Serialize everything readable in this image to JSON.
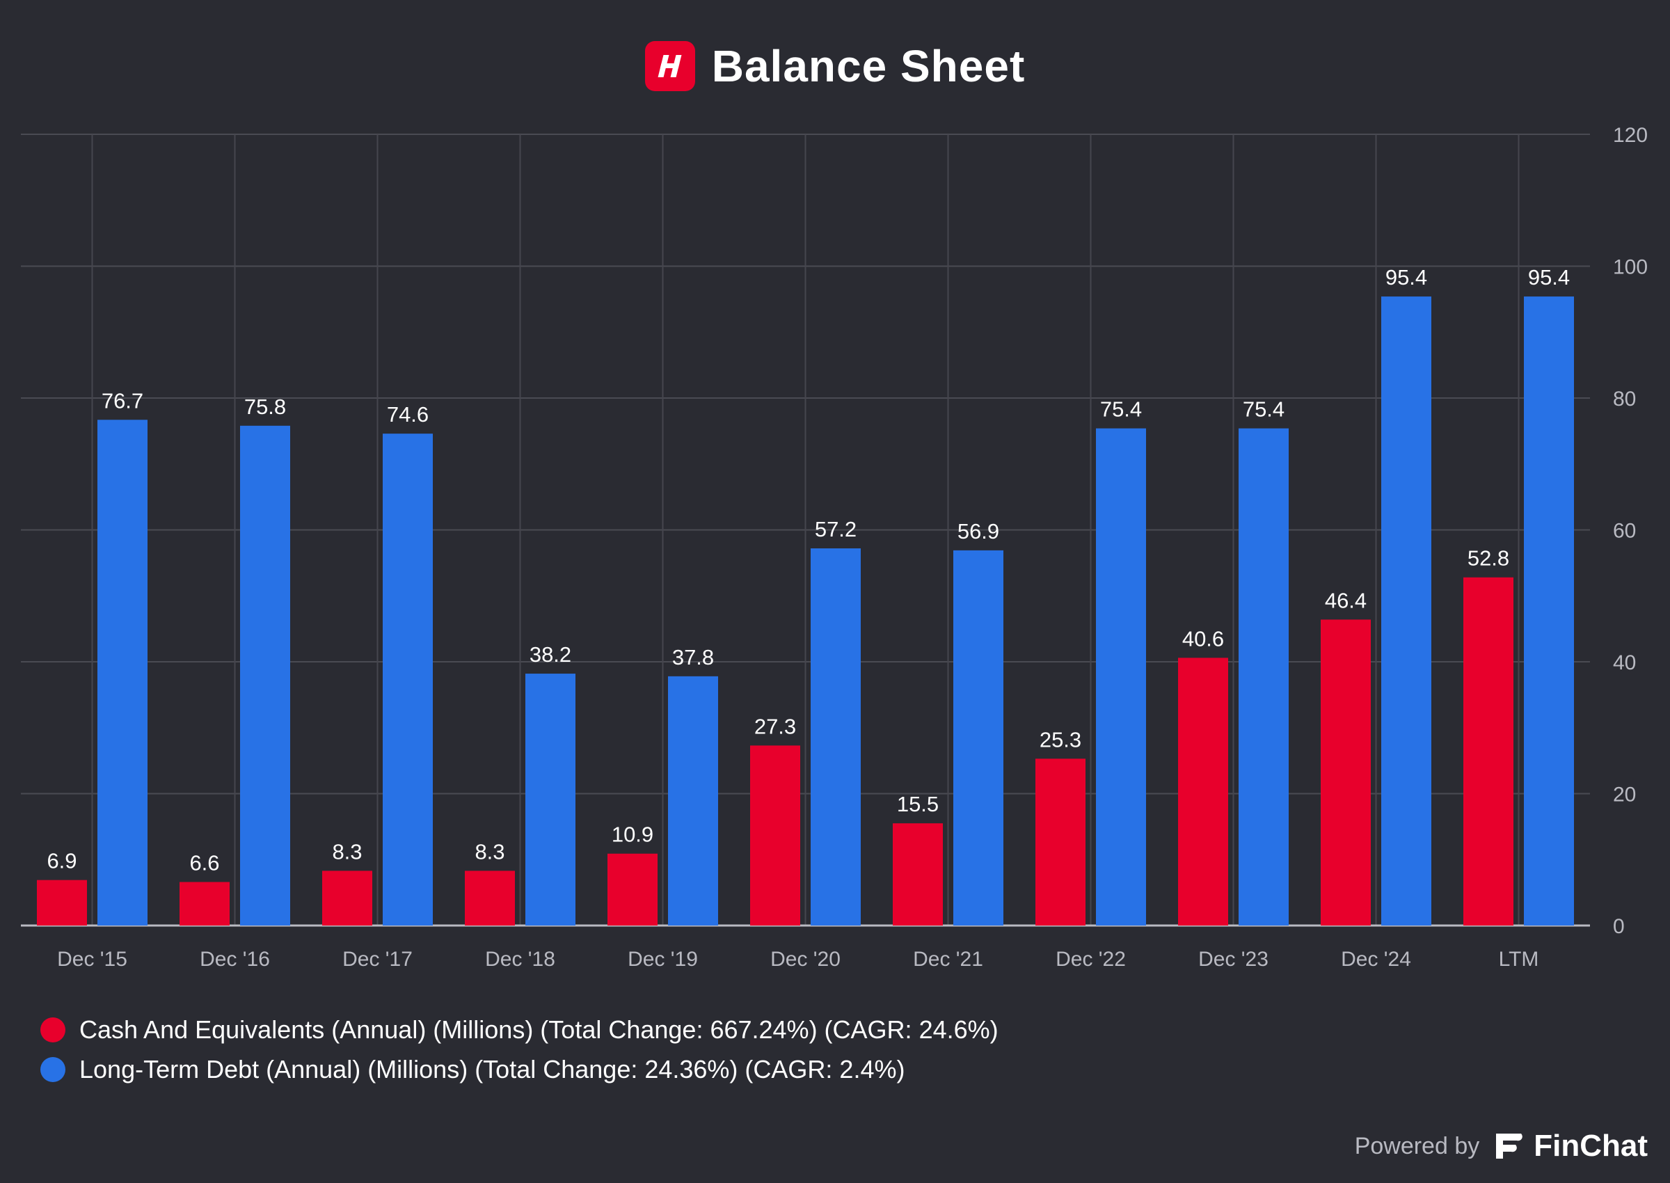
{
  "header": {
    "title": "Balance Sheet"
  },
  "legend": [
    {
      "label": "Cash And Equivalents (Annual) (Millions) (Total Change: 667.24%) (CAGR: 24.6%)",
      "color": "#e8002c"
    },
    {
      "label": "Long-Term Debt (Annual) (Millions) (Total Change: 24.36%) (CAGR: 2.4%)",
      "color": "#2872e6"
    }
  ],
  "footer": {
    "powered_by": "Powered by",
    "brand": "FinChat"
  },
  "chart_data": {
    "type": "bar",
    "categories": [
      "Dec '15",
      "Dec '16",
      "Dec '17",
      "Dec '18",
      "Dec '19",
      "Dec '20",
      "Dec '21",
      "Dec '22",
      "Dec '23",
      "Dec '24",
      "LTM"
    ],
    "series": [
      {
        "name": "Cash And Equivalents (Annual) (Millions) (Total Change: 667.24%) (CAGR: 24.6%)",
        "color": "#e8002c",
        "values": [
          6.9,
          6.6,
          8.3,
          8.3,
          10.9,
          27.3,
          15.5,
          25.3,
          40.6,
          46.4,
          52.8
        ]
      },
      {
        "name": "Long-Term Debt (Annual) (Millions) (Total Change: 24.36%) (CAGR: 2.4%)",
        "color": "#2872e6",
        "values": [
          76.7,
          75.8,
          74.6,
          38.2,
          37.8,
          57.2,
          56.9,
          75.4,
          75.4,
          95.4,
          95.4
        ]
      }
    ],
    "title": "Balance Sheet",
    "xlabel": "",
    "ylabel": "",
    "ylim": [
      0,
      120
    ],
    "yticks": [
      0,
      20,
      40,
      60,
      80,
      100,
      120
    ],
    "grid": true,
    "y_axis_side": "right",
    "legend_position": "bottom-left"
  }
}
